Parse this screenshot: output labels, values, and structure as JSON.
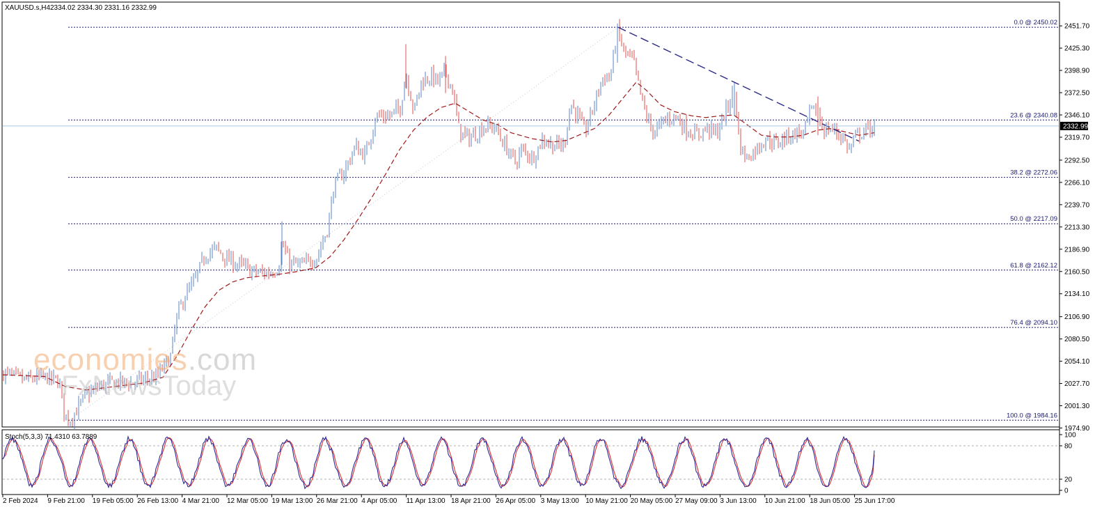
{
  "header": {
    "symbol": "XAUUSD.s,H4",
    "ohlc": "2334.02 2334.30 2331.16 2332.99"
  },
  "watermark": {
    "line1_main": "economies",
    "line1_domain": ".com",
    "line2": "FxNewsToday"
  },
  "colors": {
    "bull": "#5b86c5",
    "bear": "#e0504f",
    "ma": "#a01818",
    "fib": "#1a1a70",
    "trend": "#2a2a8a",
    "stoch_main": "#2a2a9a",
    "stoch_signal": "#e03030",
    "price_line": "#a8c8e0",
    "price_tag_bg": "#000000"
  },
  "chart_data": [
    {
      "type": "candlestick",
      "title": "XAUUSD.s,H4",
      "ohlc_readout": "2334.02 2334.30 2331.16 2332.99",
      "ylim": [
        1974.9,
        2458.0
      ],
      "y_ticks": [
        "2451.70",
        "2425.30",
        "2398.90",
        "2372.50",
        "2346.10",
        "2319.70",
        "2292.50",
        "2266.10",
        "2239.70",
        "2213.30",
        "2186.90",
        "2160.50",
        "2134.10",
        "2106.90",
        "2080.50",
        "2054.10",
        "2027.70",
        "2001.30",
        "1974.90"
      ],
      "last_price": "2332.99",
      "last_price_value": 2332.99,
      "x_labels": [
        "2 Feb 2024",
        "9 Feb 21:00",
        "19 Feb 05:00",
        "26 Feb 13:00",
        "4 Mar 21:00",
        "12 Mar 05:00",
        "19 Mar 13:00",
        "26 Mar 21:00",
        "4 Apr 05:00",
        "11 Apr 13:00",
        "18 Apr 21:00",
        "26 Apr 05:00",
        "3 May 13:00",
        "10 May 21:00",
        "20 May 05:00",
        "27 May 09:00",
        "3 Jun 13:00",
        "10 Jun 21:00",
        "18 Jun 05:00",
        "25 Jun 17:00"
      ],
      "fibonacci_levels": [
        {
          "label": "0.0 @ 2450.02",
          "value": 2450.02
        },
        {
          "label": "23.6 @ 2340.08",
          "value": 2340.08
        },
        {
          "label": "38.2 @ 2272.06",
          "value": 2272.06
        },
        {
          "label": "50.0 @ 2217.09",
          "value": 2217.09
        },
        {
          "label": "61.8 @ 2162.12",
          "value": 2162.12
        },
        {
          "label": "76.4 @ 2094.10",
          "value": 2094.1
        },
        {
          "label": "100.0 @ 1984.16",
          "value": 1984.16
        }
      ],
      "price_path": [
        [
          0,
          2040
        ],
        [
          30,
          2032
        ],
        [
          60,
          2035
        ],
        [
          80,
          2030
        ],
        [
          88,
          1990
        ],
        [
          96,
          1985
        ],
        [
          104,
          1995
        ],
        [
          120,
          2015
        ],
        [
          140,
          2025
        ],
        [
          160,
          2030
        ],
        [
          180,
          2028
        ],
        [
          200,
          2032
        ],
        [
          220,
          2035
        ],
        [
          240,
          2060
        ],
        [
          250,
          2110
        ],
        [
          260,
          2130
        ],
        [
          275,
          2150
        ],
        [
          290,
          2180
        ],
        [
          305,
          2188
        ],
        [
          320,
          2175
        ],
        [
          340,
          2168
        ],
        [
          360,
          2160
        ],
        [
          380,
          2158
        ],
        [
          395,
          2165
        ],
        [
          400,
          2195
        ],
        [
          410,
          2170
        ],
        [
          430,
          2168
        ],
        [
          450,
          2178
        ],
        [
          465,
          2210
        ],
        [
          475,
          2262
        ],
        [
          490,
          2280
        ],
        [
          505,
          2308
        ],
        [
          520,
          2298
        ],
        [
          535,
          2345
        ],
        [
          555,
          2345
        ],
        [
          570,
          2355
        ],
        [
          578,
          2395
        ],
        [
          590,
          2350
        ],
        [
          600,
          2385
        ],
        [
          615,
          2392
        ],
        [
          625,
          2385
        ],
        [
          635,
          2398
        ],
        [
          645,
          2375
        ],
        [
          655,
          2325
        ],
        [
          670,
          2318
        ],
        [
          690,
          2332
        ],
        [
          705,
          2332
        ],
        [
          720,
          2310
        ],
        [
          735,
          2290
        ],
        [
          745,
          2305
        ],
        [
          760,
          2295
        ],
        [
          775,
          2318
        ],
        [
          790,
          2310
        ],
        [
          805,
          2310
        ],
        [
          815,
          2360
        ],
        [
          825,
          2345
        ],
        [
          835,
          2325
        ],
        [
          850,
          2362
        ],
        [
          860,
          2390
        ],
        [
          872,
          2392
        ],
        [
          882,
          2445
        ],
        [
          892,
          2420
        ],
        [
          905,
          2410
        ],
        [
          915,
          2370
        ],
        [
          925,
          2340
        ],
        [
          935,
          2325
        ],
        [
          950,
          2340
        ],
        [
          965,
          2345
        ],
        [
          980,
          2330
        ],
        [
          995,
          2322
        ],
        [
          1010,
          2330
        ],
        [
          1025,
          2325
        ],
        [
          1040,
          2355
        ],
        [
          1050,
          2375
        ],
        [
          1058,
          2308
        ],
        [
          1068,
          2295
        ],
        [
          1080,
          2305
        ],
        [
          1095,
          2318
        ],
        [
          1110,
          2312
        ],
        [
          1125,
          2320
        ],
        [
          1140,
          2325
        ],
        [
          1150,
          2325
        ],
        [
          1160,
          2352
        ],
        [
          1170,
          2348
        ],
        [
          1178,
          2328
        ],
        [
          1190,
          2330
        ],
        [
          1205,
          2320
        ],
        [
          1215,
          2305
        ],
        [
          1225,
          2322
        ],
        [
          1240,
          2328
        ],
        [
          1252,
          2333
        ]
      ],
      "ma_path": [
        [
          0,
          2038
        ],
        [
          60,
          2036
        ],
        [
          90,
          2024
        ],
        [
          120,
          2020
        ],
        [
          160,
          2024
        ],
        [
          200,
          2028
        ],
        [
          230,
          2035
        ],
        [
          250,
          2060
        ],
        [
          270,
          2090
        ],
        [
          290,
          2118
        ],
        [
          310,
          2138
        ],
        [
          330,
          2148
        ],
        [
          350,
          2153
        ],
        [
          370,
          2155
        ],
        [
          395,
          2157
        ],
        [
          420,
          2160
        ],
        [
          450,
          2165
        ],
        [
          470,
          2178
        ],
        [
          490,
          2198
        ],
        [
          510,
          2222
        ],
        [
          530,
          2248
        ],
        [
          550,
          2276
        ],
        [
          570,
          2305
        ],
        [
          590,
          2328
        ],
        [
          610,
          2344
        ],
        [
          630,
          2355
        ],
        [
          650,
          2360
        ],
        [
          670,
          2350
        ],
        [
          690,
          2340
        ],
        [
          710,
          2335
        ],
        [
          730,
          2325
        ],
        [
          760,
          2318
        ],
        [
          790,
          2314
        ],
        [
          810,
          2316
        ],
        [
          830,
          2323
        ],
        [
          850,
          2330
        ],
        [
          870,
          2345
        ],
        [
          890,
          2365
        ],
        [
          910,
          2385
        ],
        [
          925,
          2375
        ],
        [
          945,
          2358
        ],
        [
          965,
          2350
        ],
        [
          990,
          2345
        ],
        [
          1010,
          2343
        ],
        [
          1030,
          2345
        ],
        [
          1050,
          2346
        ],
        [
          1070,
          2334
        ],
        [
          1090,
          2322
        ],
        [
          1110,
          2320
        ],
        [
          1130,
          2320
        ],
        [
          1150,
          2322
        ],
        [
          1170,
          2328
        ],
        [
          1190,
          2330
        ],
        [
          1210,
          2326
        ],
        [
          1230,
          2322
        ],
        [
          1252,
          2325
        ]
      ],
      "trendline": [
        [
          884,
          2450
        ],
        [
          1230,
          2315
        ]
      ],
      "retracement_guide": [
        [
          96,
          1984.16
        ],
        [
          884,
          2450.02
        ]
      ]
    },
    {
      "type": "line",
      "title": "Stoch(5,3,3) 71.4310 63.7889",
      "ylim": [
        0,
        100
      ],
      "y_ticks": [
        "100",
        "80",
        "20",
        "0"
      ],
      "levels": [
        80,
        20
      ],
      "series": [
        {
          "name": "main",
          "color": "#2a2a9a"
        },
        {
          "name": "signal",
          "color": "#e03030"
        }
      ],
      "last_main": 71.431,
      "last_signal": 63.7889
    }
  ]
}
